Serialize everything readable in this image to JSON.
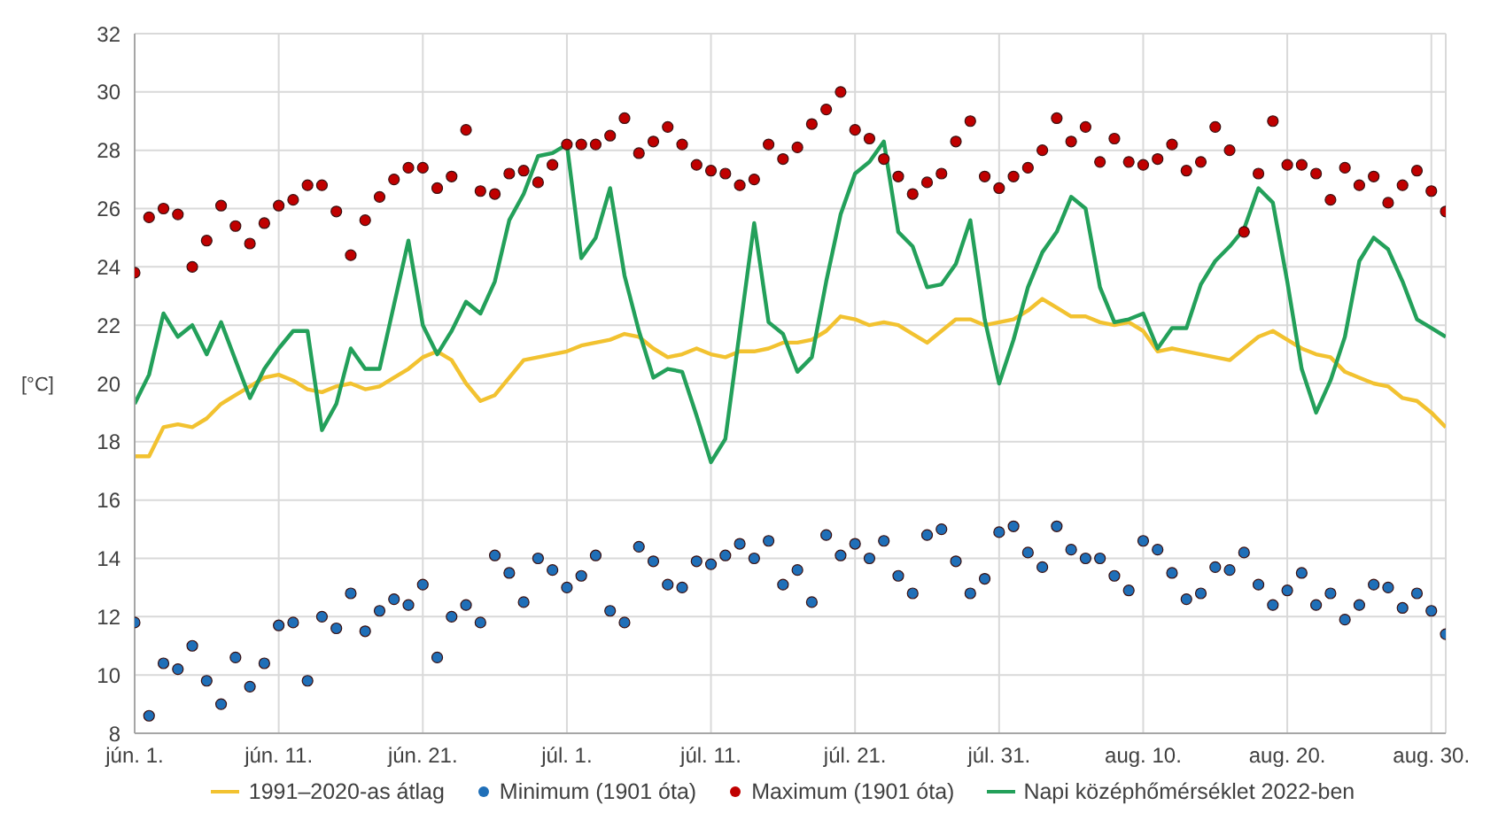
{
  "chart_data": {
    "type": "line",
    "ylabel": "[°C]",
    "categories": [
      "jún. 1.",
      null,
      null,
      null,
      null,
      null,
      null,
      null,
      null,
      null,
      "jún. 11.",
      null,
      null,
      null,
      null,
      null,
      null,
      null,
      null,
      null,
      "jún. 21.",
      null,
      null,
      null,
      null,
      null,
      null,
      null,
      null,
      null,
      "júl. 1.",
      null,
      null,
      null,
      null,
      null,
      null,
      null,
      null,
      null,
      "júl. 11.",
      null,
      null,
      null,
      null,
      null,
      null,
      null,
      null,
      null,
      "júl. 21.",
      null,
      null,
      null,
      null,
      null,
      null,
      null,
      null,
      null,
      "júl. 31.",
      null,
      null,
      null,
      null,
      null,
      null,
      null,
      null,
      null,
      "aug. 10.",
      null,
      null,
      null,
      null,
      null,
      null,
      null,
      null,
      null,
      "aug. 20.",
      null,
      null,
      null,
      null,
      null,
      null,
      null,
      null,
      null,
      "aug. 30.",
      null
    ],
    "series": [
      {
        "name": "1991–2020-as átlag",
        "color": "#f2c230",
        "values": [
          17.5,
          17.5,
          18.5,
          18.6,
          18.5,
          18.8,
          19.3,
          19.6,
          19.9,
          20.2,
          20.3,
          20.1,
          19.8,
          19.7,
          19.9,
          20.0,
          19.8,
          19.9,
          20.2,
          20.5,
          20.9,
          21.1,
          20.8,
          20.0,
          19.4,
          19.6,
          20.2,
          20.8,
          20.9,
          21.0,
          21.1,
          21.3,
          21.4,
          21.5,
          21.7,
          21.6,
          21.2,
          20.9,
          21.0,
          21.2,
          21.0,
          20.9,
          21.1,
          21.1,
          21.2,
          21.4,
          21.4,
          21.5,
          21.8,
          22.3,
          22.2,
          22.0,
          22.1,
          22.0,
          21.7,
          21.4,
          21.8,
          22.2,
          22.2,
          22.0,
          22.1,
          22.2,
          22.5,
          22.9,
          22.6,
          22.3,
          22.3,
          22.1,
          22.0,
          22.1,
          21.8,
          21.1,
          21.2,
          21.1,
          21.0,
          20.9,
          20.8,
          21.2,
          21.6,
          21.8,
          21.5,
          21.2,
          21.0,
          20.9,
          20.4,
          20.2,
          20.0,
          19.9,
          19.5,
          19.4,
          19.0,
          18.5
        ]
      },
      {
        "name": "Minimum (1901 óta)",
        "type": "scatter",
        "marker": "circle",
        "color": "#1f6fb8",
        "values": [
          11.8,
          8.6,
          10.4,
          10.2,
          11.0,
          9.8,
          9.0,
          10.6,
          9.6,
          10.4,
          11.7,
          11.8,
          9.8,
          12.0,
          11.6,
          12.8,
          11.5,
          12.2,
          12.6,
          12.4,
          13.1,
          10.6,
          12.0,
          12.4,
          11.8,
          14.1,
          13.5,
          12.5,
          14.0,
          13.6,
          13.0,
          13.4,
          14.1,
          12.2,
          11.8,
          14.4,
          13.9,
          13.1,
          13.0,
          13.9,
          13.8,
          14.1,
          14.5,
          14.0,
          14.6,
          13.1,
          13.6,
          12.5,
          14.8,
          14.1,
          14.5,
          14.0,
          14.6,
          13.4,
          12.8,
          14.8,
          15.0,
          13.9,
          12.8,
          13.3,
          14.9,
          15.1,
          14.2,
          13.7,
          15.1,
          14.3,
          14.0,
          14.0,
          13.4,
          12.9,
          14.6,
          14.3,
          13.5,
          12.6,
          12.8,
          13.7,
          13.6,
          14.2,
          13.1,
          12.4,
          12.9,
          13.5,
          12.4,
          12.8,
          11.9,
          12.4,
          13.1,
          13.0,
          12.3,
          12.8,
          12.2,
          11.4
        ]
      },
      {
        "name": "Maximum (1901 óta)",
        "type": "scatter",
        "marker": "circle",
        "color": "#c00000",
        "values": [
          23.8,
          25.7,
          26.0,
          25.8,
          24.0,
          24.9,
          26.1,
          25.4,
          24.8,
          25.5,
          26.1,
          26.3,
          26.8,
          26.8,
          25.9,
          24.4,
          25.6,
          26.4,
          27.0,
          27.4,
          27.4,
          26.7,
          27.1,
          28.7,
          26.6,
          26.5,
          27.2,
          27.3,
          26.9,
          27.5,
          28.2,
          28.2,
          28.2,
          28.5,
          29.1,
          27.9,
          28.3,
          28.8,
          28.2,
          27.5,
          27.3,
          27.2,
          26.8,
          27.0,
          28.2,
          27.7,
          28.1,
          28.9,
          29.4,
          30.0,
          28.7,
          28.4,
          27.7,
          27.1,
          26.5,
          26.9,
          27.2,
          28.3,
          29.0,
          27.1,
          26.7,
          27.1,
          27.4,
          28.0,
          29.1,
          28.3,
          28.8,
          27.6,
          28.4,
          27.6,
          27.5,
          27.7,
          28.2,
          27.3,
          27.6,
          28.8,
          28.0,
          25.2,
          27.2,
          29.0,
          27.5,
          27.5,
          27.2,
          26.3,
          27.4,
          26.8,
          27.1,
          26.2,
          26.8,
          27.3,
          26.6,
          25.9
        ]
      },
      {
        "name": "Napi középhőmérséklet 2022-ben",
        "color": "#23a05a",
        "values": [
          19.3,
          20.3,
          22.4,
          21.6,
          22.0,
          21.0,
          22.1,
          20.8,
          19.5,
          20.5,
          21.2,
          21.8,
          21.8,
          18.4,
          19.3,
          21.2,
          20.5,
          20.5,
          22.7,
          24.9,
          22.0,
          21.0,
          21.8,
          22.8,
          22.4,
          23.5,
          25.6,
          26.5,
          27.8,
          27.9,
          28.2,
          24.3,
          25.0,
          26.7,
          23.7,
          21.8,
          20.2,
          20.5,
          20.4,
          18.9,
          17.3,
          18.1,
          21.8,
          25.5,
          22.1,
          21.7,
          20.4,
          20.9,
          23.5,
          25.8,
          27.2,
          27.6,
          28.3,
          25.2,
          24.7,
          23.3,
          23.4,
          24.1,
          25.6,
          22.2,
          20.0,
          21.5,
          23.3,
          24.5,
          25.2,
          26.4,
          26.0,
          23.3,
          22.1,
          22.2,
          22.4,
          21.2,
          21.9,
          21.9,
          23.4,
          24.2,
          24.7,
          25.3,
          26.7,
          26.2,
          23.5,
          20.5,
          19.0,
          20.1,
          21.6,
          24.2,
          25.0,
          24.6,
          23.5,
          22.2,
          21.9,
          21.6
        ]
      }
    ],
    "ylim": [
      8,
      32
    ],
    "yticks": [
      8,
      10,
      12,
      14,
      16,
      18,
      20,
      22,
      24,
      26,
      28,
      30,
      32
    ],
    "grid": true,
    "legend": "bottom",
    "line_style": "solid"
  }
}
